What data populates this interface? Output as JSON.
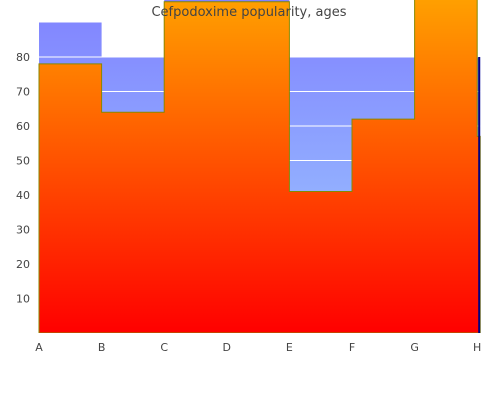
{
  "chart_data": {
    "type": "area",
    "title": "Cefpodoxime popularity, ages",
    "categories": [
      "A",
      "B",
      "C",
      "D",
      "E",
      "F",
      "G",
      "H"
    ],
    "series": [
      {
        "values": [
          78,
          64,
          96,
          96,
          41,
          62,
          100,
          57
        ]
      },
      {
        "values": [
          90,
          80,
          97,
          97,
          80,
          80,
          100,
          80
        ]
      }
    ],
    "ylim": [
      0,
      96
    ],
    "yticks": [
      10,
      20,
      30,
      40,
      50,
      60,
      70,
      80
    ],
    "grid": true,
    "legend": "none"
  },
  "colors": {
    "area_top": "#ffa500",
    "area_bottom": "#ff0000",
    "back_top": "#7f7fff",
    "back_bottom": "#9fcfff",
    "outline": "#888800",
    "grid": "#ffffff",
    "right_edge": "#000080"
  }
}
